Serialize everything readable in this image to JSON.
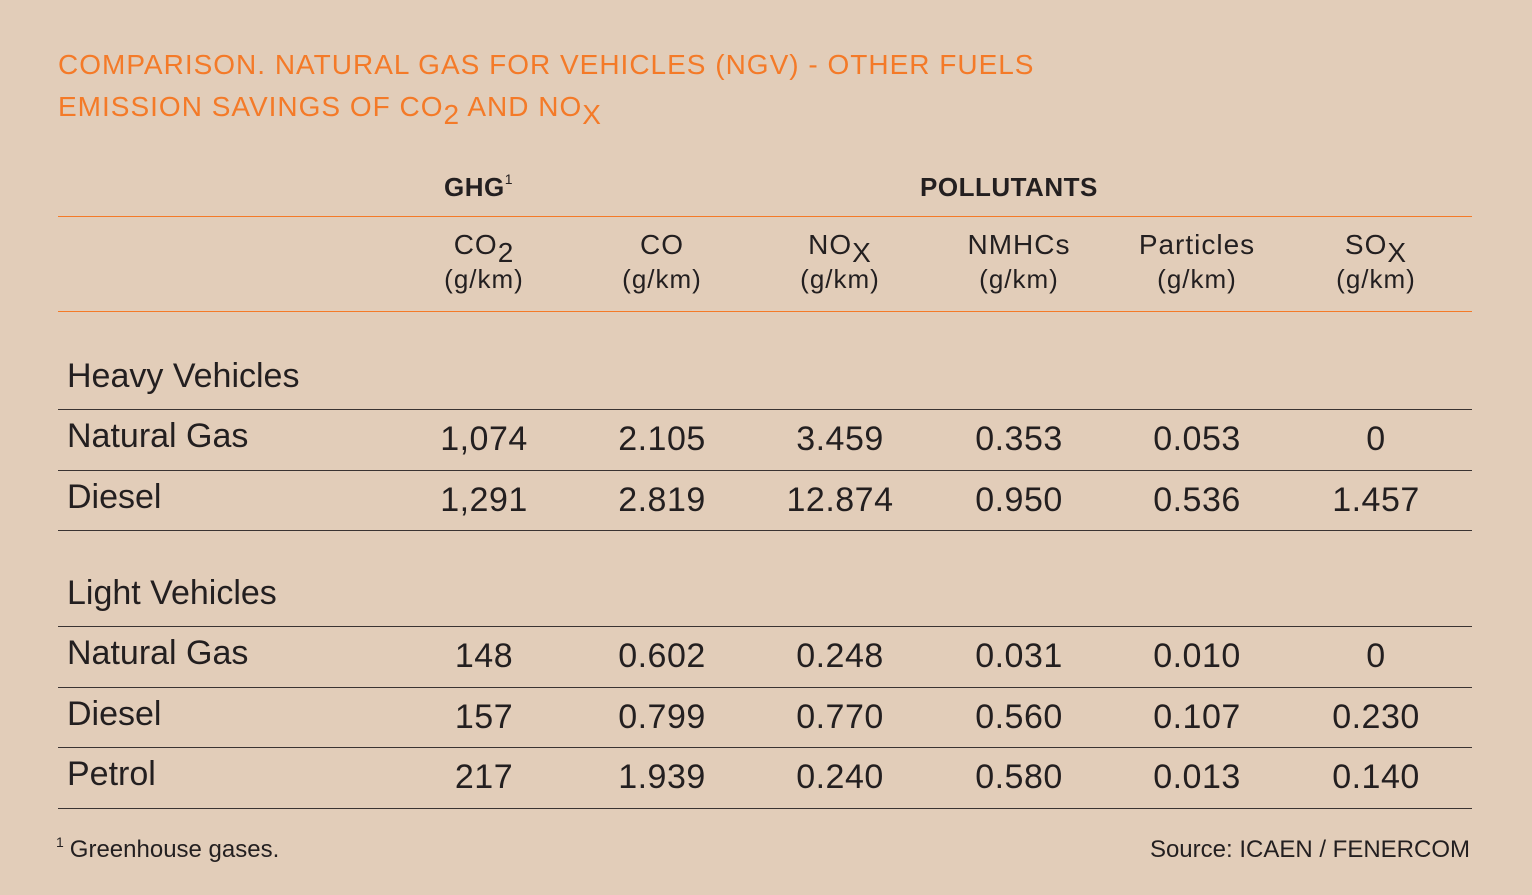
{
  "title": {
    "line1": "Comparison. Natural gas for vehicles (NGV) - other fuels",
    "line2_prefix": "Emission savings of CO",
    "line2_sub1": "2",
    "line2_mid": " and NO",
    "line2_sub2": "X"
  },
  "group_headers": {
    "ghg": "GHG",
    "ghg_note": "1",
    "pollutants": "POLLUTANTS"
  },
  "columns": [
    {
      "name": "CO",
      "sub": "2",
      "unit": "(g/km)"
    },
    {
      "name": "CO",
      "sub": "",
      "unit": "(g/km)"
    },
    {
      "name": "NO",
      "sub": "X",
      "unit": "(g/km)"
    },
    {
      "name": "NMHCs",
      "sub": "",
      "unit": "(g/km)"
    },
    {
      "name": "Particles",
      "sub": "",
      "unit": "(g/km)"
    },
    {
      "name": "SO",
      "sub": "X",
      "unit": "(g/km)"
    }
  ],
  "chart_data": {
    "type": "table",
    "sections": [
      {
        "name": "Heavy Vehicles",
        "rows": [
          {
            "label": "Natural Gas",
            "values": [
              "1,074",
              "2.105",
              "3.459",
              "0.353",
              "0.053",
              "0"
            ]
          },
          {
            "label": "Diesel",
            "values": [
              "1,291",
              "2.819",
              "12.874",
              "0.950",
              "0.536",
              "1.457"
            ]
          }
        ]
      },
      {
        "name": "Light Vehicles",
        "rows": [
          {
            "label": "Natural Gas",
            "values": [
              "148",
              "0.602",
              "0.248",
              "0.031",
              "0.010",
              "0"
            ]
          },
          {
            "label": "Diesel",
            "values": [
              "157",
              "0.799",
              "0.770",
              "0.560",
              "0.107",
              "0.230"
            ]
          },
          {
            "label": "Petrol",
            "values": [
              "217",
              "1.939",
              "0.240",
              "0.580",
              "0.013",
              "0.140"
            ]
          }
        ]
      }
    ]
  },
  "footnote": {
    "mark": "1",
    "text": "Greenhouse gases."
  },
  "source": "Source: ICAEN / FENERCOM",
  "colors": {
    "accent": "#f47a28",
    "background": "#e2cdb9",
    "text": "#231f20"
  }
}
